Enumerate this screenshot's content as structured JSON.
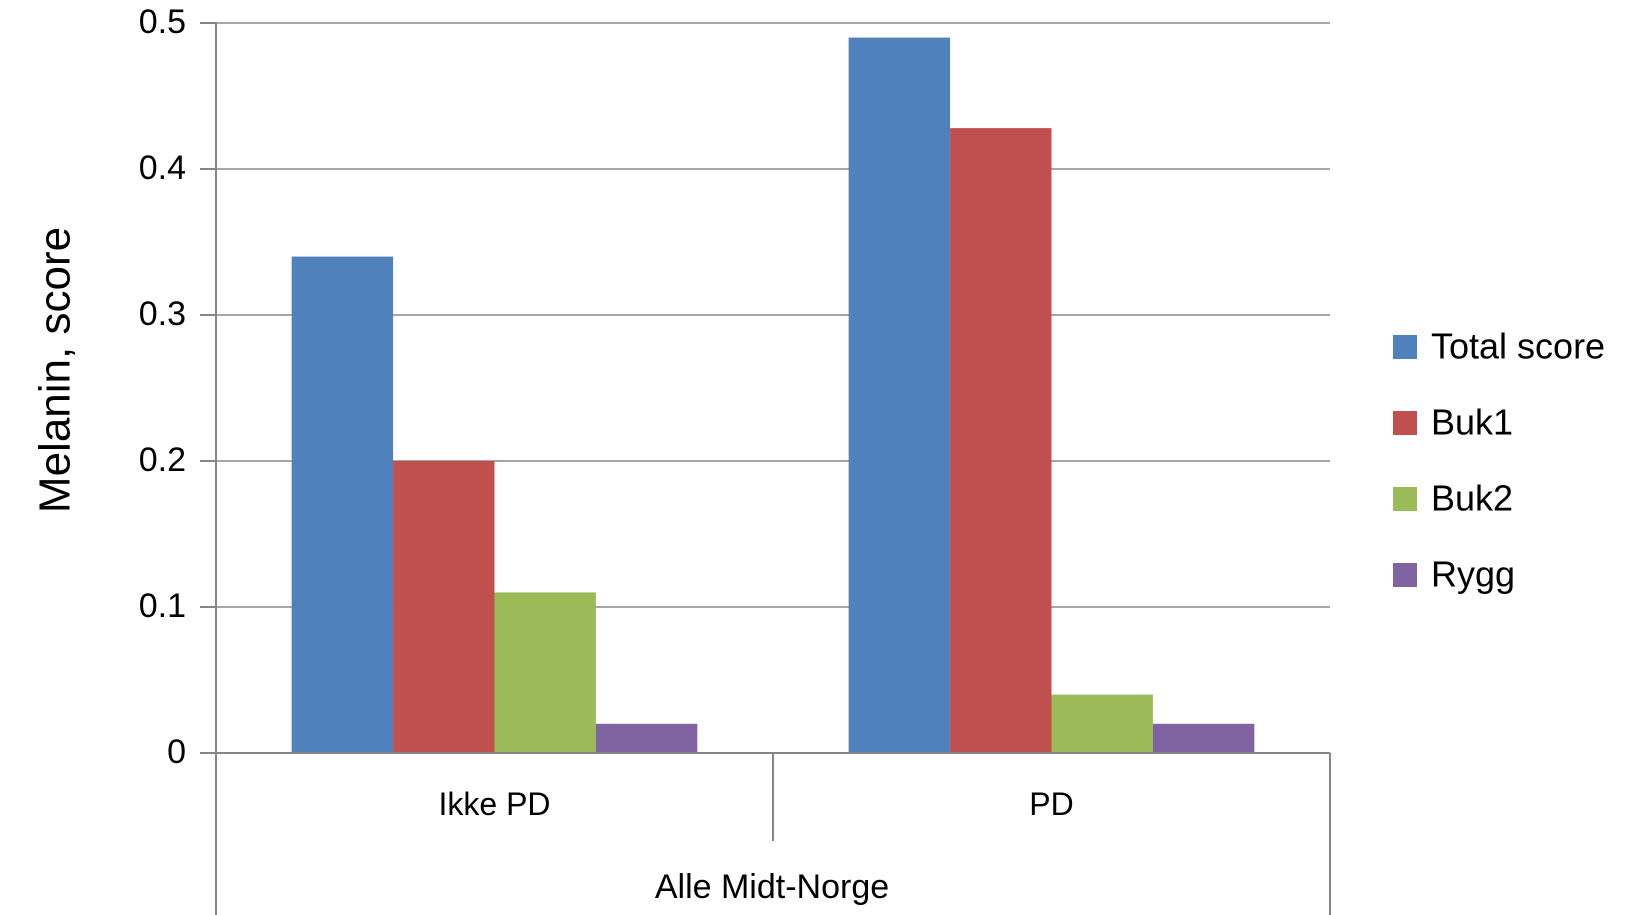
{
  "chart_data": {
    "type": "bar",
    "title": "",
    "ylabel": "Melanin, score",
    "xlabel": "",
    "group_label": "Alle Midt-Norge",
    "categories": [
      "Ikke PD",
      "PD"
    ],
    "series": [
      {
        "name": "Total score",
        "color": "#4F81BD",
        "values": [
          0.34,
          0.49
        ]
      },
      {
        "name": "Buk1",
        "color": "#C0504D",
        "values": [
          0.2,
          0.428
        ]
      },
      {
        "name": "Buk2",
        "color": "#9BBB59",
        "values": [
          0.11,
          0.04
        ]
      },
      {
        "name": "Rygg",
        "color": "#8064A2",
        "values": [
          0.02,
          0.02
        ]
      }
    ],
    "ylim": [
      0,
      0.5
    ],
    "yticks": [
      "0",
      "0.1",
      "0.2",
      "0.3",
      "0.4",
      "0.5"
    ],
    "ytick_values": [
      0,
      0.1,
      0.2,
      0.3,
      0.4,
      0.5
    ],
    "grid": true,
    "legend_position": "right"
  }
}
